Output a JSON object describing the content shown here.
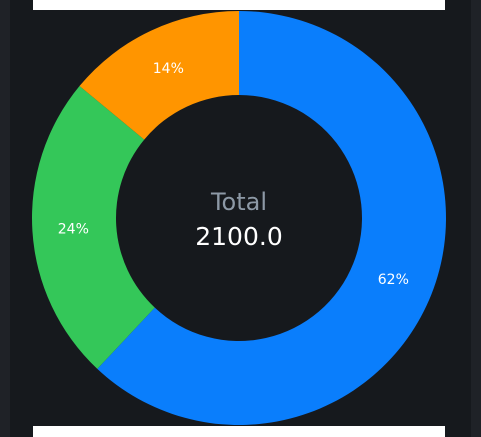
{
  "chart_data": {
    "type": "pie",
    "style": "donut",
    "slices": [
      {
        "value": 62,
        "label": "62%",
        "color": "#0a7efc"
      },
      {
        "value": 24,
        "label": "24%",
        "color": "#34c759"
      },
      {
        "value": 14,
        "label": "14%",
        "color": "#ff9500"
      }
    ],
    "center": {
      "title": "Total",
      "value": "2100.0"
    }
  },
  "colors": {
    "background": "#16191d",
    "center_title": "#8d99a6",
    "center_value": "#ffffff",
    "bar": "#ffffff"
  }
}
